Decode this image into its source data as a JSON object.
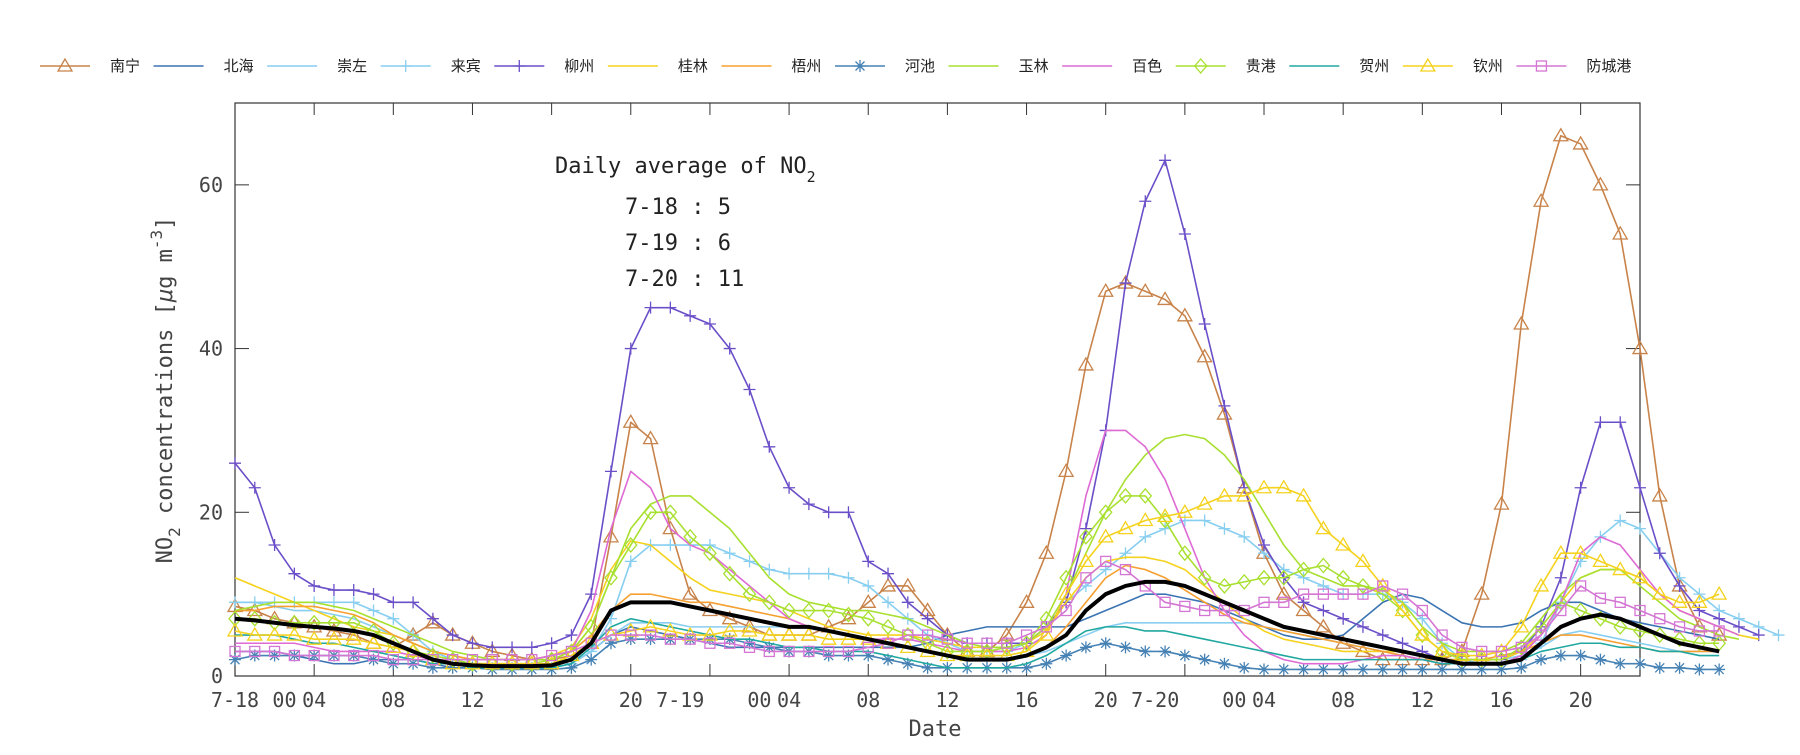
{
  "chart_data": {
    "type": "line",
    "xlabel": "Date",
    "ylabel": "NO2 concentrations [μg m-3]",
    "ylabel_parts": {
      "a": "NO",
      "sub": "2",
      "b": " concentrations [",
      "mu": "μ",
      "c": "g m",
      "sup": "-3",
      "d": "]"
    },
    "ylim": [
      0,
      70
    ],
    "xlim": [
      0,
      71
    ],
    "yticks": [
      0,
      20,
      40,
      60
    ],
    "yticks_labels": [
      "0",
      "20",
      "40",
      "60"
    ],
    "xtick_labels": [
      {
        "x": 0,
        "text": "7-18"
      },
      {
        "x": 2.5,
        "text": "00"
      },
      {
        "x": 4,
        "text": "04"
      },
      {
        "x": 8,
        "text": "08"
      },
      {
        "x": 12,
        "text": "12"
      },
      {
        "x": 16,
        "text": "16"
      },
      {
        "x": 20,
        "text": "20"
      },
      {
        "x": 22.5,
        "text": "7-19"
      },
      {
        "x": 26.5,
        "text": "00"
      },
      {
        "x": 28,
        "text": "04"
      },
      {
        "x": 32,
        "text": "08"
      },
      {
        "x": 36,
        "text": "12"
      },
      {
        "x": 40,
        "text": "16"
      },
      {
        "x": 44,
        "text": "20"
      },
      {
        "x": 46.5,
        "text": "7-20"
      },
      {
        "x": 50.5,
        "text": "00"
      },
      {
        "x": 52,
        "text": "04"
      },
      {
        "x": 56,
        "text": "08"
      },
      {
        "x": 60,
        "text": "12"
      },
      {
        "x": 64,
        "text": "16"
      },
      {
        "x": 68,
        "text": "20"
      }
    ],
    "xtick_marks": [
      0,
      4,
      8,
      12,
      16,
      20,
      24,
      28,
      32,
      36,
      40,
      44,
      48,
      52,
      56,
      60,
      64,
      68
    ],
    "grid": false,
    "legend_position": "top",
    "annotation": {
      "title_a": "Daily average of NO",
      "title_sub": "2",
      "lines": [
        "7-18 : 5",
        "7-19 : 6",
        "7-20 : 11"
      ]
    },
    "series": [
      {
        "name": "南宁",
        "color": "#c8834a",
        "marker": "triangle",
        "values": [
          8.5,
          8,
          7,
          6.5,
          6,
          5.5,
          5,
          4,
          3.5,
          5,
          6.5,
          5,
          4,
          3,
          2.5,
          2,
          2,
          2.5,
          4,
          17,
          31,
          29,
          18,
          10,
          8,
          7,
          6,
          5,
          5,
          5,
          6,
          7,
          9,
          11,
          11,
          8,
          5,
          3,
          3,
          5,
          9,
          15,
          25,
          38,
          47,
          48,
          47,
          46,
          44,
          39,
          32,
          23,
          15,
          10,
          8,
          6,
          4,
          3,
          2,
          2,
          2,
          2,
          3,
          10,
          21,
          43,
          58,
          66,
          65,
          60,
          54,
          40,
          22,
          11,
          6,
          5
        ]
      },
      {
        "name": "北海",
        "color": "#3b74b3",
        "marker": "none",
        "values": [
          3,
          3,
          3,
          2.5,
          2,
          1.5,
          1.5,
          2,
          2,
          2,
          1.5,
          1,
          1,
          1,
          1,
          1,
          1,
          1.5,
          3,
          5,
          6,
          5.5,
          5,
          4.5,
          4,
          3.5,
          3.5,
          3.5,
          3.5,
          3.5,
          3.5,
          3.5,
          3.5,
          3.5,
          3.5,
          4,
          5,
          5.5,
          6,
          6,
          6,
          6,
          6,
          7,
          8,
          9,
          10,
          10,
          9.5,
          9,
          8,
          7,
          6,
          5,
          4.5,
          4.5,
          5,
          7,
          9,
          10,
          9.5,
          8,
          6.5,
          6,
          6,
          6.5,
          8,
          9,
          9,
          8,
          7,
          6.5,
          6,
          5.5,
          5,
          4.5
        ]
      },
      {
        "name": "崇左",
        "color": "#87cef0",
        "marker": "none",
        "values": [
          9,
          9,
          8.5,
          8,
          8,
          7.5,
          7,
          6,
          5,
          4,
          3,
          2,
          1.5,
          1,
          1,
          1,
          1,
          1.5,
          3,
          5,
          6.5,
          6.5,
          6.5,
          6,
          6,
          6,
          6,
          6,
          6,
          6,
          5.5,
          5,
          4.5,
          4,
          3.5,
          3,
          2.5,
          2,
          2,
          2,
          2.5,
          3,
          4,
          5,
          6,
          6.5,
          6.5,
          6.5,
          6.5,
          6.5,
          6.5,
          6.5,
          6,
          5.5,
          5,
          4.5,
          4,
          3.5,
          3,
          2.5,
          2,
          2,
          2,
          2,
          2,
          2.5,
          3.5,
          5,
          5.5,
          5,
          4.5,
          4,
          3.5,
          3,
          3,
          3
        ]
      },
      {
        "name": "来宾",
        "color": "#87cef0",
        "marker": "plus",
        "values": [
          9,
          9,
          9,
          9,
          9,
          9,
          9,
          8,
          7,
          5,
          3,
          2,
          1.5,
          1,
          1,
          1,
          1,
          1.5,
          3,
          7,
          14,
          16,
          16,
          16,
          16,
          15,
          14,
          13,
          12.5,
          12.5,
          12.5,
          12,
          11,
          9,
          7,
          5,
          4,
          3,
          3,
          3,
          4,
          6,
          9,
          11,
          13,
          15,
          17,
          18,
          19,
          19,
          18,
          17,
          15,
          13,
          12,
          11,
          10,
          10,
          10,
          9,
          7,
          4,
          2,
          1.5,
          1.5,
          2,
          4,
          9,
          14,
          17,
          19,
          18,
          15,
          12,
          10,
          8,
          7,
          6,
          5
        ]
      },
      {
        "name": "柳州",
        "color": "#6b4fc8",
        "marker": "plus",
        "values": [
          26,
          23,
          16,
          12.5,
          11,
          10.5,
          10.5,
          10,
          9,
          9,
          7,
          5,
          4,
          3.5,
          3.5,
          3.5,
          4,
          5,
          10,
          25,
          40,
          45,
          45,
          44,
          43,
          40,
          35,
          28,
          23,
          21,
          20,
          20,
          14,
          12.5,
          9,
          7,
          5,
          4,
          4,
          4,
          4,
          6,
          9,
          18,
          30,
          48,
          58,
          63,
          54,
          43,
          33,
          23,
          16,
          12,
          9,
          8,
          7,
          6,
          5,
          4,
          3,
          2,
          2,
          2,
          2,
          3,
          6,
          12,
          23,
          31,
          31,
          23,
          15,
          11,
          8,
          7,
          6,
          5
        ]
      },
      {
        "name": "桂林",
        "color": "#f5d21e",
        "marker": "none",
        "values": [
          12,
          11,
          10,
          9,
          8,
          7,
          6,
          5.5,
          5,
          4,
          3,
          2.5,
          2,
          2,
          2,
          2,
          2.5,
          3.5,
          7,
          13,
          16.5,
          16,
          14,
          12,
          10.5,
          10,
          9.5,
          9,
          8,
          7,
          6,
          5.5,
          5,
          5,
          5,
          4.5,
          4,
          3.5,
          3.5,
          3.5,
          4,
          5.5,
          9,
          12,
          14,
          14.5,
          14.5,
          14,
          13,
          11,
          9,
          7,
          5.5,
          4.5,
          4,
          3.5,
          3,
          3,
          3,
          3,
          2.5,
          2,
          2,
          2,
          2,
          3,
          5,
          9,
          12,
          13,
          13,
          12,
          10,
          8,
          7,
          6,
          5,
          4.5
        ]
      },
      {
        "name": "梧州",
        "color": "#f5a030",
        "marker": "none",
        "values": [
          8,
          8,
          8.5,
          8.5,
          8.5,
          8,
          7.5,
          6.5,
          5,
          4,
          3,
          2.5,
          2,
          2,
          2,
          2,
          2.5,
          3,
          5,
          8,
          10,
          10,
          9.5,
          9,
          9,
          8.5,
          8,
          7.5,
          7,
          6,
          5.5,
          5,
          4.5,
          4,
          3.5,
          3,
          2.5,
          2,
          2,
          2,
          2.5,
          3.5,
          6,
          9,
          12,
          13.5,
          13,
          12,
          10.5,
          9,
          7.5,
          6.5,
          6,
          5.5,
          5,
          4.5,
          4,
          3.5,
          3,
          2.5,
          2,
          2,
          2,
          2,
          2.5,
          3,
          4,
          5,
          5,
          4.5,
          4,
          3.5,
          3,
          3,
          3,
          3
        ]
      },
      {
        "name": "河池",
        "color": "#4682b4",
        "marker": "asterisk",
        "values": [
          2,
          2.5,
          2.5,
          2.5,
          2.5,
          2.5,
          2.5,
          2,
          1.5,
          1.5,
          1,
          1,
          1,
          0.8,
          0.8,
          0.8,
          0.8,
          1,
          2,
          4,
          4.5,
          4.5,
          4.5,
          4.5,
          4.5,
          4.5,
          4,
          3.5,
          3,
          3,
          2.5,
          2.5,
          2.5,
          2,
          1.5,
          1,
          1,
          1,
          1,
          1,
          1,
          1.5,
          2.5,
          3.5,
          4,
          3.5,
          3,
          3,
          2.5,
          2,
          1.5,
          1,
          0.8,
          0.8,
          0.8,
          0.8,
          0.8,
          0.8,
          0.8,
          0.8,
          0.8,
          0.8,
          0.8,
          0.8,
          0.8,
          1,
          2,
          2.5,
          2.5,
          2,
          1.5,
          1.5,
          1,
          1,
          0.8,
          0.8
        ]
      },
      {
        "name": "玉林",
        "color": "#a8e030",
        "marker": "none",
        "values": [
          8,
          8.5,
          9,
          9,
          9,
          8.5,
          8,
          7,
          6,
          5,
          4,
          3,
          2.5,
          2,
          2,
          2,
          2,
          3,
          6,
          12,
          18,
          21,
          22,
          22,
          20,
          18,
          15,
          12,
          10,
          9,
          8.5,
          8,
          8,
          7.5,
          7,
          6,
          5,
          4,
          3.5,
          3.5,
          4,
          6,
          10,
          15,
          20,
          24,
          27,
          29,
          29.5,
          29,
          27,
          24,
          20,
          16,
          13,
          12,
          11,
          11,
          10.5,
          9,
          6,
          4,
          3,
          3,
          3,
          4,
          7,
          10,
          12,
          13,
          13,
          11,
          9,
          7,
          6,
          5,
          4.5
        ]
      },
      {
        "name": "百色",
        "color": "#de6ad4",
        "marker": "none",
        "values": [
          4,
          4,
          4,
          4,
          3.5,
          3,
          3,
          3,
          3,
          2.5,
          2,
          2,
          2,
          2,
          2,
          2,
          2.5,
          3,
          8,
          18,
          25,
          23,
          18,
          16,
          15,
          13,
          11,
          9,
          7,
          6,
          5.5,
          5,
          4.5,
          4.5,
          4.5,
          4,
          3.5,
          3,
          3,
          3,
          3.5,
          5,
          10,
          22,
          30,
          30,
          28,
          24,
          18,
          12,
          8,
          5,
          3,
          2,
          1.5,
          1.5,
          1.5,
          2,
          2.5,
          2.5,
          2,
          1.5,
          1.5,
          1.5,
          1.5,
          2.5,
          5,
          9,
          15,
          17,
          16,
          13,
          10,
          8,
          7,
          6,
          5
        ]
      },
      {
        "name": "贵港",
        "color": "#a8e030",
        "marker": "diamond",
        "values": [
          7,
          7,
          6.5,
          6.5,
          6.5,
          6.5,
          6.5,
          5.5,
          4,
          3,
          2.5,
          2,
          1.5,
          1.5,
          1.5,
          1.5,
          2,
          3,
          6,
          12,
          16,
          20,
          20,
          17,
          15,
          12.5,
          10,
          9,
          8,
          8,
          8,
          7.5,
          7,
          6,
          5,
          4,
          3,
          3,
          3,
          3.5,
          4,
          7,
          12,
          17,
          20,
          22,
          22,
          19,
          15,
          12,
          11,
          11.5,
          12,
          12,
          13,
          13.5,
          12,
          11,
          10,
          8,
          5,
          3,
          2,
          2,
          2,
          3.5,
          6,
          9,
          8,
          7,
          6,
          5.5,
          5,
          4.5,
          4,
          4
        ]
      },
      {
        "name": "贺州",
        "color": "#20a8a0",
        "marker": "none",
        "values": [
          5,
          5,
          5,
          4.5,
          4,
          4,
          3.5,
          3,
          2.5,
          2,
          1.5,
          1.5,
          1,
          1,
          1,
          1,
          1,
          1.5,
          3.5,
          6,
          7,
          6.5,
          6,
          5.5,
          5,
          4.5,
          4.5,
          4,
          3.5,
          3.5,
          3,
          3,
          3,
          2.5,
          2,
          1.5,
          1,
          1,
          1,
          1,
          1.5,
          2.5,
          4,
          5.5,
          6,
          6,
          5.5,
          5.5,
          5,
          4.5,
          4,
          3.5,
          3,
          2.5,
          2,
          2,
          2,
          2,
          2,
          2,
          2,
          1.5,
          1.5,
          1.5,
          1.5,
          2,
          3,
          3.5,
          4,
          4,
          3.5,
          3.5,
          3,
          3,
          2.5,
          2.5
        ]
      },
      {
        "name": "钦州",
        "color": "#f5d21e",
        "marker": "triangle",
        "values": [
          5.5,
          5,
          5,
          5,
          4.5,
          4.5,
          4.5,
          4,
          3.5,
          3,
          2,
          1.5,
          1.5,
          1.5,
          1.5,
          1.5,
          1.5,
          2.5,
          4,
          5,
          5.5,
          6,
          5.5,
          5,
          5,
          5.5,
          5.5,
          5,
          5,
          5,
          4.5,
          4.5,
          4.5,
          4,
          3.5,
          3,
          2.5,
          2.5,
          2.5,
          2.5,
          3,
          5,
          10,
          14,
          17,
          18,
          19,
          19.5,
          20,
          21,
          22,
          22,
          23,
          23,
          22,
          18,
          16,
          14,
          11,
          8,
          5,
          3,
          2.5,
          2.5,
          3,
          6,
          11,
          15,
          15,
          14,
          13,
          12,
          10,
          9,
          9,
          10
        ]
      },
      {
        "name": "防城港",
        "color": "#d476d4",
        "marker": "square",
        "values": [
          3,
          3,
          3,
          2.5,
          2.5,
          2.5,
          2.5,
          2.5,
          2,
          2,
          2,
          2,
          2,
          2,
          2,
          2,
          2.5,
          3,
          4,
          5,
          5,
          5,
          4.5,
          4.5,
          4,
          4,
          3.5,
          3,
          3,
          3,
          3,
          3,
          3.5,
          4,
          5,
          5,
          4.5,
          4,
          4,
          4,
          5,
          6,
          8,
          12,
          14,
          13,
          11,
          9,
          8.5,
          8,
          8,
          8,
          9,
          9,
          10,
          10,
          10,
          10,
          11,
          10,
          8,
          5,
          3.5,
          3,
          3,
          3.5,
          5,
          8,
          11,
          9.5,
          9,
          8,
          7,
          6,
          5.5,
          5.5
        ]
      },
      {
        "name": "",
        "color": "#000000",
        "marker": "none",
        "thick": true,
        "values": [
          7,
          6.8,
          6.5,
          6.2,
          6,
          5.8,
          5.5,
          5,
          4,
          3,
          2,
          1.5,
          1.3,
          1.2,
          1.2,
          1.2,
          1.3,
          2,
          4,
          8,
          9,
          9,
          9,
          8.5,
          8,
          7.5,
          7,
          6.5,
          6,
          6,
          5.5,
          5,
          4.5,
          4,
          3.5,
          3,
          2.5,
          2,
          2,
          2,
          2.5,
          3.5,
          5,
          8,
          10,
          11,
          11.5,
          11.5,
          11,
          10,
          9,
          8,
          7,
          6,
          5.5,
          5,
          4.5,
          4,
          3.5,
          3,
          2.5,
          2,
          1.5,
          1.5,
          1.5,
          2,
          4,
          6,
          7,
          7.5,
          7,
          6,
          5,
          4,
          3.5,
          3
        ]
      }
    ]
  }
}
